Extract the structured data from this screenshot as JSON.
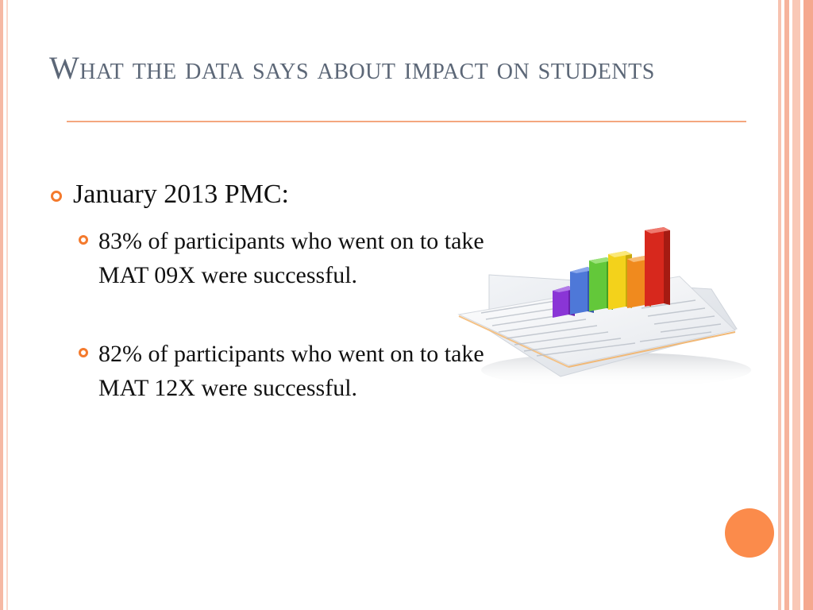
{
  "slide": {
    "title": "What the data says about impact on students",
    "bullets": {
      "level1": "January 2013 PMC:",
      "level2": [
        "83% of participants who went on to take MAT 09X were successful.",
        "82% of participants who went on to take MAT 12X were successful."
      ]
    }
  },
  "colors": {
    "title": "#5c6777",
    "accent": "#f47a2d",
    "rule": "#f4a77f",
    "circle": "#fb8b4b"
  },
  "icons": {
    "bullet": "ring-bullet-icon",
    "illustration": "bar-chart-on-papers-icon"
  }
}
